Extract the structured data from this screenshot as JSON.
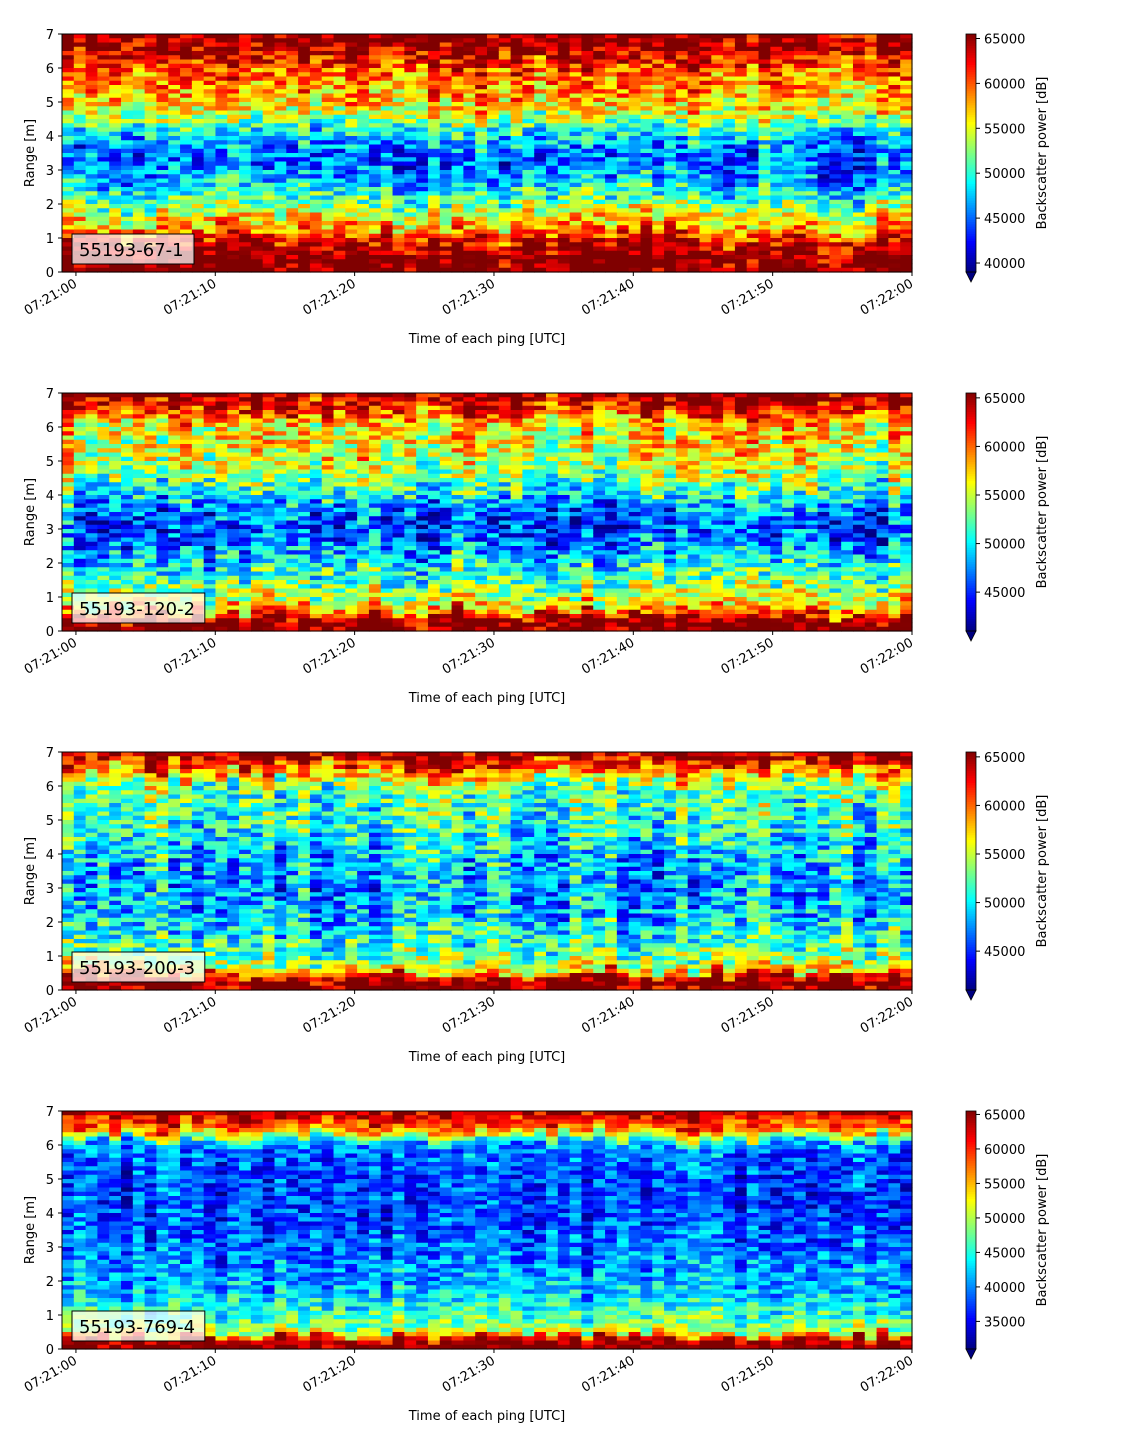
{
  "figure": {
    "colormap": "jet",
    "panel_label_background": "#ffffff"
  },
  "chart_data": [
    {
      "type": "heatmap",
      "label": "55193-67-1",
      "xlabel": "Time of each ping [UTC]",
      "ylabel": "Range [m]",
      "colorbar_label": "Backscatter power [dB]",
      "xlim": [
        "07:20:59",
        "07:22:00"
      ],
      "xticks": [
        "07:21:00",
        "07:21:10",
        "07:21:20",
        "07:21:30",
        "07:21:40",
        "07:21:50",
        "07:22:00"
      ],
      "ylim": [
        0,
        7
      ],
      "yticks": [
        "0",
        "1",
        "2",
        "3",
        "4",
        "5",
        "6",
        "7"
      ],
      "clim": [
        39000,
        65500
      ],
      "cticks": [
        "40000",
        "45000",
        "50000",
        "55000",
        "60000",
        "65000"
      ],
      "profile": {
        "range_m": [
          0.2,
          0.5,
          0.9,
          1.2,
          1.6,
          2.0,
          2.5,
          3.0,
          3.5,
          4.0,
          4.5,
          5.0,
          5.5,
          6.0,
          6.5,
          7.0
        ],
        "power": [
          66000,
          66000,
          63000,
          58500,
          56000,
          52000,
          48500,
          45500,
          44500,
          47500,
          53000,
          57000,
          58000,
          60000,
          64000,
          65500
        ]
      }
    },
    {
      "type": "heatmap",
      "label": "55193-120-2",
      "xlabel": "Time of each ping [UTC]",
      "ylabel": "Range [m]",
      "colorbar_label": "Backscatter power [dB]",
      "xlim": [
        "07:20:59",
        "07:22:00"
      ],
      "xticks": [
        "07:21:00",
        "07:21:10",
        "07:21:20",
        "07:21:30",
        "07:21:40",
        "07:21:50",
        "07:22:00"
      ],
      "ylim": [
        0,
        7
      ],
      "yticks": [
        "0",
        "1",
        "2",
        "3",
        "4",
        "5",
        "6",
        "7"
      ],
      "clim": [
        41000,
        65500
      ],
      "cticks": [
        "45000",
        "50000",
        "55000",
        "60000",
        "65000"
      ],
      "profile": {
        "range_m": [
          0.1,
          0.3,
          0.6,
          1.0,
          1.5,
          2.0,
          2.5,
          3.0,
          3.5,
          4.0,
          4.5,
          5.0,
          5.5,
          6.0,
          6.5,
          7.0
        ],
        "power": [
          66000,
          66000,
          58000,
          54500,
          52000,
          49500,
          47000,
          45500,
          46500,
          50000,
          53500,
          55500,
          56000,
          56500,
          62000,
          65500
        ]
      }
    },
    {
      "type": "heatmap",
      "label": "55193-200-3",
      "xlabel": "Time of each ping [UTC]",
      "ylabel": "Range [m]",
      "colorbar_label": "Backscatter power [dB]",
      "xlim": [
        "07:20:59",
        "07:22:00"
      ],
      "xticks": [
        "07:21:00",
        "07:21:10",
        "07:21:20",
        "07:21:30",
        "07:21:40",
        "07:21:50",
        "07:22:00"
      ],
      "ylim": [
        0,
        7
      ],
      "yticks": [
        "0",
        "1",
        "2",
        "3",
        "4",
        "5",
        "6",
        "7"
      ],
      "clim": [
        41000,
        65500
      ],
      "cticks": [
        "45000",
        "50000",
        "55000",
        "60000",
        "65000"
      ],
      "profile": {
        "range_m": [
          0.1,
          0.3,
          0.6,
          1.0,
          1.5,
          2.0,
          2.5,
          3.0,
          3.5,
          4.0,
          4.5,
          5.0,
          5.5,
          6.0,
          6.5,
          7.0
        ],
        "power": [
          66000,
          66000,
          56500,
          53500,
          51000,
          49500,
          48500,
          48000,
          48500,
          49500,
          50500,
          51500,
          52000,
          53000,
          60000,
          65500
        ]
      }
    },
    {
      "type": "heatmap",
      "label": "55193-769-4",
      "xlabel": "Time of each ping [UTC]",
      "ylabel": "Range [m]",
      "colorbar_label": "Backscatter power [dB]",
      "xlim": [
        "07:20:59",
        "07:22:00"
      ],
      "xticks": [
        "07:21:00",
        "07:21:10",
        "07:21:20",
        "07:21:30",
        "07:21:40",
        "07:21:50",
        "07:22:00"
      ],
      "ylim": [
        0,
        7
      ],
      "yticks": [
        "0",
        "1",
        "2",
        "3",
        "4",
        "5",
        "6",
        "7"
      ],
      "clim": [
        31000,
        65500
      ],
      "cticks": [
        "35000",
        "40000",
        "45000",
        "50000",
        "55000",
        "60000",
        "65000"
      ],
      "profile": {
        "range_m": [
          0.1,
          0.25,
          0.5,
          1.0,
          1.5,
          2.0,
          2.5,
          3.0,
          3.5,
          4.0,
          4.5,
          5.0,
          5.5,
          6.0,
          6.5,
          7.0
        ],
        "power": [
          66000,
          66000,
          50000,
          46000,
          43000,
          41000,
          40000,
          39000,
          38000,
          37500,
          37500,
          37500,
          38000,
          40000,
          58000,
          64000
        ]
      }
    }
  ]
}
